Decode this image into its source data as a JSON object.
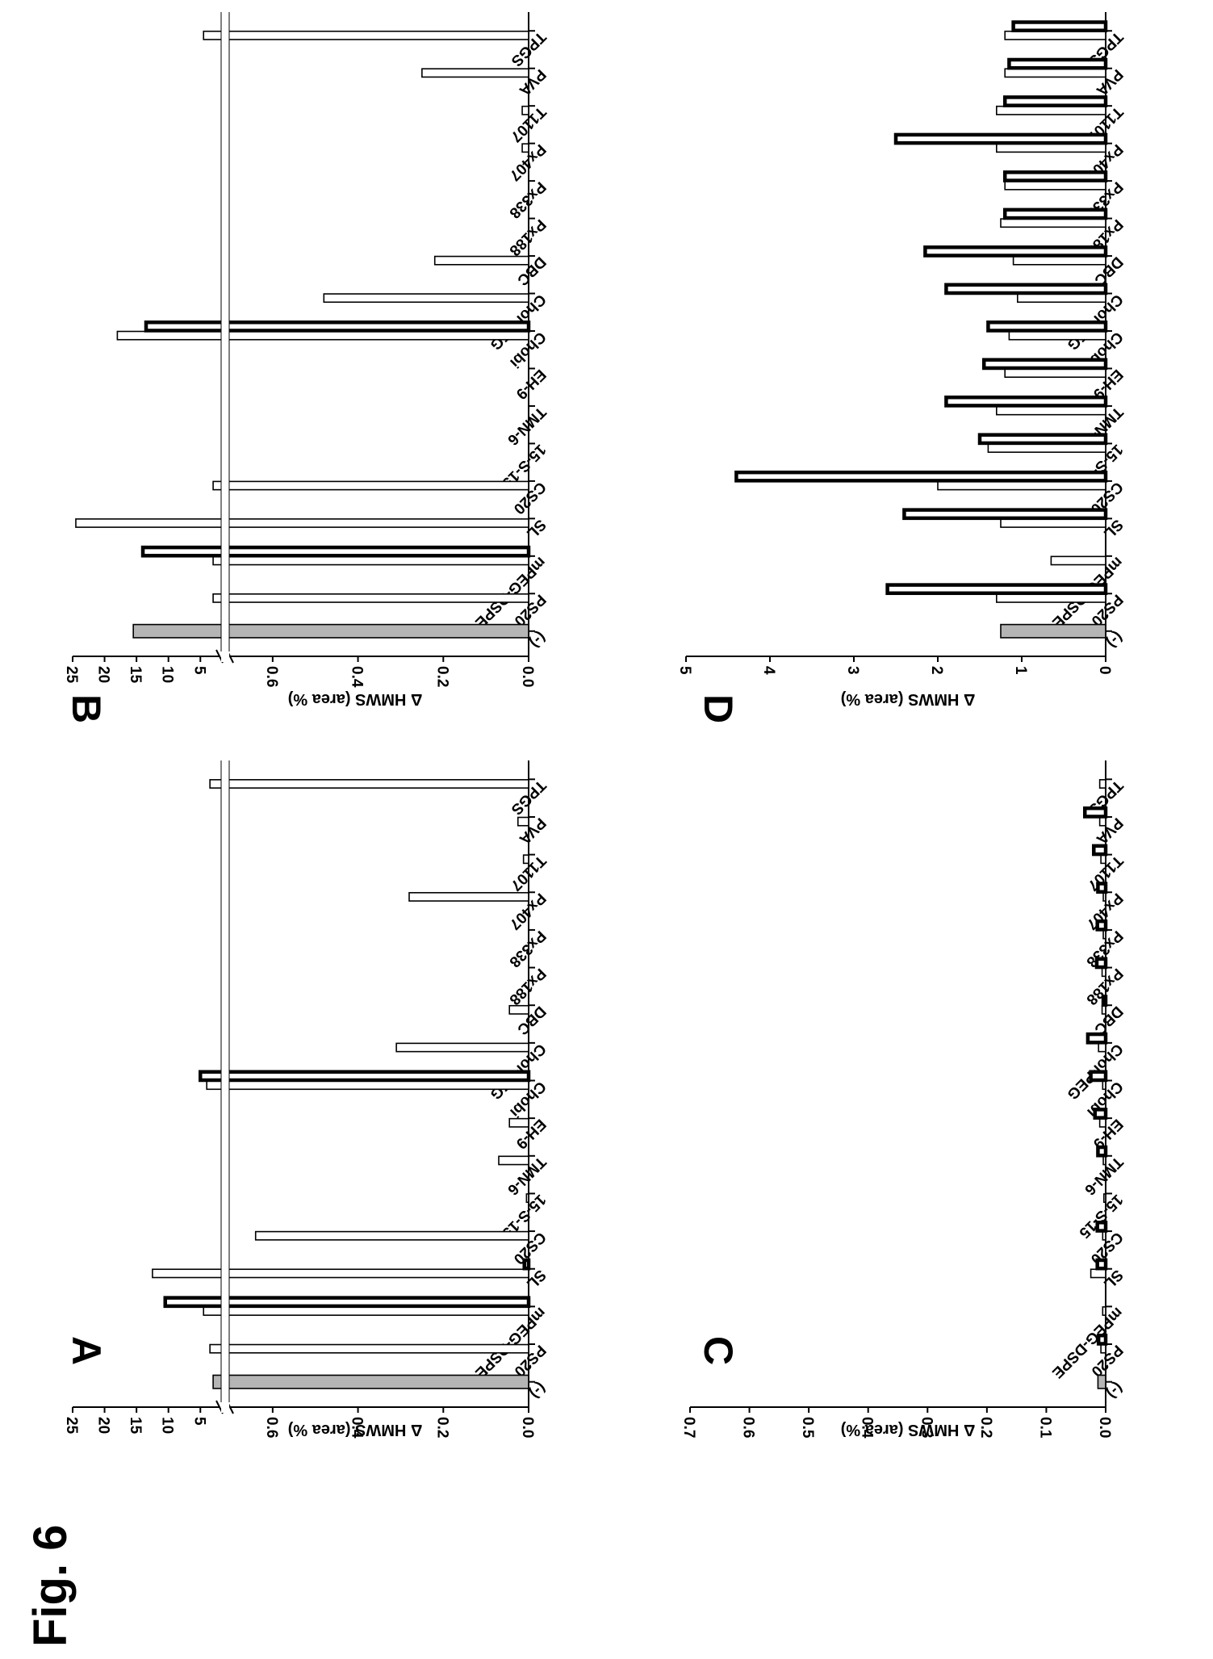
{
  "figure_title": "Fig. 6",
  "categories": [
    "(-)",
    "PS20",
    "mPEG-DSPE",
    "SL",
    "CS20",
    "15-S-15",
    "TMN-6",
    "EH-9",
    "Chobi",
    "Chol-PEG",
    "DBC",
    "Px188",
    "Px338",
    "Px407",
    "T1107",
    "PVA",
    "TPGS"
  ],
  "colors": {
    "background": "#ffffff",
    "ink": "#000000",
    "control_fill": "#b5b5b5",
    "open_fill": "#ffffff"
  },
  "chart_data": [
    {
      "panel": "A",
      "type": "bar",
      "ylabel": "Δ HMWS (area %)",
      "broken_axis": true,
      "ylim_lower": [
        0,
        0.7
      ],
      "ylim_upper": [
        2,
        25
      ],
      "yticks_lower": [
        "0.0",
        "0.2",
        "0.4",
        "0.6"
      ],
      "yticks_upper": [
        "5",
        "10",
        "15",
        "20",
        "25"
      ],
      "series": [
        {
          "style": "open",
          "values": [
            3.0,
            3.5,
            4.5,
            12.5,
            0.64,
            0.005,
            0.07,
            0.045,
            4.0,
            0.31,
            0.045,
            null,
            null,
            0.28,
            0.012,
            0.025,
            3.5
          ]
        },
        {
          "style": "bold",
          "values": [
            null,
            null,
            10.5,
            0.01,
            null,
            null,
            null,
            null,
            5.0,
            null,
            null,
            null,
            null,
            null,
            null,
            null,
            null
          ]
        }
      ]
    },
    {
      "panel": "B",
      "type": "bar",
      "ylabel": "Δ HMWS (area %)",
      "broken_axis": true,
      "ylim_lower": [
        0,
        0.7
      ],
      "ylim_upper": [
        2,
        25
      ],
      "yticks_lower": [
        "0.0",
        "0.2",
        "0.4",
        "0.6"
      ],
      "yticks_upper": [
        "5",
        "10",
        "15",
        "20",
        "25"
      ],
      "series": [
        {
          "style": "open",
          "values": [
            15.5,
            3.0,
            3.0,
            24.5,
            3.0,
            null,
            null,
            null,
            18.0,
            0.48,
            0.22,
            null,
            null,
            0.015,
            0.015,
            0.25,
            4.5
          ]
        },
        {
          "style": "bold",
          "values": [
            null,
            null,
            14.0,
            null,
            null,
            null,
            null,
            null,
            13.5,
            null,
            null,
            null,
            null,
            null,
            null,
            null,
            null
          ]
        }
      ]
    },
    {
      "panel": "C",
      "type": "bar",
      "ylabel": "Δ HMWS (area %)",
      "ylim": [
        0,
        0.7
      ],
      "yticks": [
        "0.0",
        "0.1",
        "0.2",
        "0.3",
        "0.4",
        "0.5",
        "0.6",
        "0.7"
      ],
      "series": [
        {
          "style": "open",
          "values": [
            0.013,
            0.008,
            0.005,
            0.025,
            0.005,
            0.003,
            0.004,
            0.01,
            0.005,
            0.012,
            0.006,
            0.006,
            0.004,
            0.004,
            0.008,
            0.01,
            0.01
          ]
        },
        {
          "style": "bold",
          "values": [
            null,
            0.012,
            null,
            0.014,
            0.014,
            null,
            0.013,
            0.018,
            0.025,
            0.03,
            0.004,
            0.015,
            0.014,
            0.013,
            0.02,
            0.035,
            null
          ]
        }
      ]
    },
    {
      "panel": "D",
      "type": "bar",
      "ylabel": "Δ HMWS (area %)",
      "ylim": [
        0,
        5
      ],
      "yticks": [
        "0",
        "1",
        "2",
        "3",
        "4",
        "5"
      ],
      "series": [
        {
          "style": "open",
          "values": [
            1.25,
            1.3,
            0.65,
            1.25,
            2.0,
            1.4,
            1.3,
            1.2,
            1.15,
            1.05,
            1.1,
            1.25,
            1.2,
            1.3,
            1.3,
            1.2,
            1.2
          ]
        },
        {
          "style": "bold",
          "values": [
            null,
            2.6,
            null,
            2.4,
            4.4,
            1.5,
            1.9,
            1.45,
            1.4,
            1.9,
            2.15,
            1.2,
            1.2,
            2.5,
            1.2,
            1.15,
            1.1
          ]
        }
      ]
    }
  ]
}
